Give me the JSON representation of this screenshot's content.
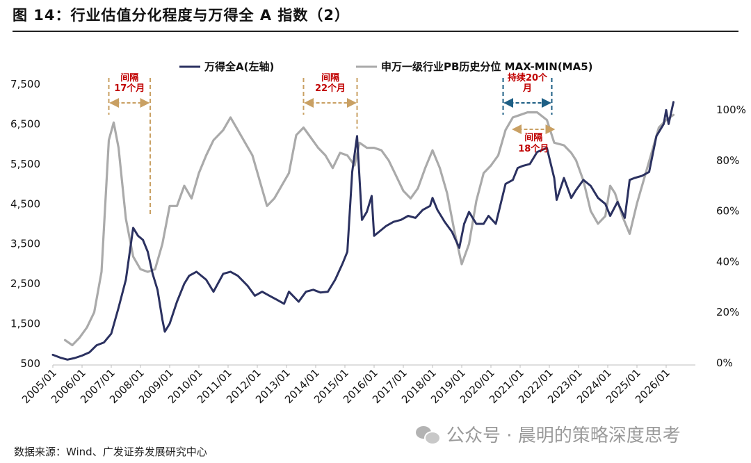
{
  "title": "图 14：行业估值分化程度与万得全 A 指数（2）",
  "source": "数据来源：Wind、广发证券发展研究中心",
  "watermark": "公众号 · 晨明的策略深度思考",
  "colors": {
    "wind": "#2b3160",
    "pb": "#aaaaaa",
    "bracket_tan": "#c9a063",
    "bracket_blue": "#1e5f85",
    "annotation": "#c00000"
  },
  "chart_data": {
    "type": "line",
    "x_ticks": [
      "2005/01",
      "2006/01",
      "2007/01",
      "2008/01",
      "2009/01",
      "2010/01",
      "2011/01",
      "2012/01",
      "2013/01",
      "2014/01",
      "2015/01",
      "2016/01",
      "2017/01",
      "2018/01",
      "2019/01",
      "2020/01",
      "2021/01",
      "2022/01",
      "2023/01",
      "2024/01",
      "2025/01",
      "2026/01"
    ],
    "y_left_ticks": [
      "500",
      "1,500",
      "2,500",
      "3,500",
      "4,500",
      "5,500",
      "6,500",
      "7,500"
    ],
    "y_right_ticks": [
      "0%",
      "20%",
      "40%",
      "60%",
      "80%",
      "100%"
    ],
    "ylim_left": [
      500,
      7500
    ],
    "ylim_right": [
      0,
      100
    ],
    "grid": false,
    "legend_position": "top",
    "series": [
      {
        "name": "万得全A(左轴)",
        "axis": "left",
        "color": "#2b3160",
        "points": [
          [
            "2005-01",
            720
          ],
          [
            "2005-04",
            650
          ],
          [
            "2005-07",
            600
          ],
          [
            "2005-10",
            640
          ],
          [
            "2006-01",
            700
          ],
          [
            "2006-04",
            780
          ],
          [
            "2006-07",
            960
          ],
          [
            "2006-10",
            1030
          ],
          [
            "2007-01",
            1250
          ],
          [
            "2007-04",
            1900
          ],
          [
            "2007-07",
            2600
          ],
          [
            "2007-10",
            3900
          ],
          [
            "2007-12",
            3700
          ],
          [
            "2008-02",
            3600
          ],
          [
            "2008-04",
            3300
          ],
          [
            "2008-06",
            2750
          ],
          [
            "2008-08",
            2350
          ],
          [
            "2008-10",
            1600
          ],
          [
            "2008-11",
            1300
          ],
          [
            "2009-01",
            1500
          ],
          [
            "2009-04",
            2050
          ],
          [
            "2009-07",
            2500
          ],
          [
            "2009-09",
            2700
          ],
          [
            "2009-12",
            2800
          ],
          [
            "2010-04",
            2600
          ],
          [
            "2010-07",
            2300
          ],
          [
            "2010-11",
            2750
          ],
          [
            "2011-02",
            2800
          ],
          [
            "2011-05",
            2700
          ],
          [
            "2011-09",
            2450
          ],
          [
            "2011-12",
            2200
          ],
          [
            "2012-03",
            2300
          ],
          [
            "2012-06",
            2200
          ],
          [
            "2012-09",
            2100
          ],
          [
            "2012-12",
            2000
          ],
          [
            "2013-02",
            2300
          ],
          [
            "2013-06",
            2050
          ],
          [
            "2013-09",
            2300
          ],
          [
            "2013-12",
            2350
          ],
          [
            "2014-03",
            2280
          ],
          [
            "2014-06",
            2300
          ],
          [
            "2014-09",
            2600
          ],
          [
            "2014-12",
            3000
          ],
          [
            "2015-02",
            3300
          ],
          [
            "2015-04",
            5300
          ],
          [
            "2015-06",
            6200
          ],
          [
            "2015-08",
            4100
          ],
          [
            "2015-10",
            4300
          ],
          [
            "2015-12",
            4700
          ],
          [
            "2016-01",
            3700
          ],
          [
            "2016-03",
            3800
          ],
          [
            "2016-06",
            3950
          ],
          [
            "2016-09",
            4050
          ],
          [
            "2016-12",
            4100
          ],
          [
            "2017-03",
            4200
          ],
          [
            "2017-06",
            4150
          ],
          [
            "2017-09",
            4350
          ],
          [
            "2017-12",
            4450
          ],
          [
            "2018-01",
            4650
          ],
          [
            "2018-03",
            4350
          ],
          [
            "2018-06",
            4050
          ],
          [
            "2018-09",
            3800
          ],
          [
            "2018-12",
            3400
          ],
          [
            "2019-02",
            4000
          ],
          [
            "2019-04",
            4300
          ],
          [
            "2019-07",
            4000
          ],
          [
            "2019-10",
            4000
          ],
          [
            "2019-12",
            4200
          ],
          [
            "2020-03",
            4000
          ],
          [
            "2020-07",
            5000
          ],
          [
            "2020-10",
            5100
          ],
          [
            "2020-12",
            5400
          ],
          [
            "2021-02",
            5450
          ],
          [
            "2021-05",
            5500
          ],
          [
            "2021-08",
            5800
          ],
          [
            "2021-12",
            5900
          ],
          [
            "2022-03",
            5150
          ],
          [
            "2022-04",
            4600
          ],
          [
            "2022-07",
            5150
          ],
          [
            "2022-10",
            4650
          ],
          [
            "2022-12",
            4850
          ],
          [
            "2023-03",
            5100
          ],
          [
            "2023-06",
            4950
          ],
          [
            "2023-09",
            4650
          ],
          [
            "2023-12",
            4500
          ],
          [
            "2024-02",
            4200
          ],
          [
            "2024-05",
            4550
          ],
          [
            "2024-08",
            4150
          ],
          [
            "2024-10",
            5100
          ],
          [
            "2024-12",
            5150
          ],
          [
            "2025-03",
            5200
          ],
          [
            "2025-06",
            5300
          ],
          [
            "2025-09",
            6200
          ],
          [
            "2025-12",
            6500
          ],
          [
            "2026-01",
            6850
          ],
          [
            "2026-02",
            6500
          ],
          [
            "2026-04",
            7050
          ]
        ]
      },
      {
        "name": "申万一级行业PB历史分位 MAX-MIN(MA5)",
        "axis": "right",
        "color": "#aaaaaa",
        "points": [
          [
            "2005-06",
            9
          ],
          [
            "2005-09",
            7
          ],
          [
            "2005-12",
            10
          ],
          [
            "2006-03",
            14
          ],
          [
            "2006-06",
            20
          ],
          [
            "2006-09",
            36
          ],
          [
            "2006-12",
            88
          ],
          [
            "2007-02",
            95
          ],
          [
            "2007-04",
            85
          ],
          [
            "2007-07",
            57
          ],
          [
            "2007-10",
            42
          ],
          [
            "2008-01",
            37
          ],
          [
            "2008-04",
            36
          ],
          [
            "2008-07",
            37
          ],
          [
            "2008-10",
            47
          ],
          [
            "2009-01",
            62
          ],
          [
            "2009-04",
            62
          ],
          [
            "2009-07",
            70
          ],
          [
            "2009-10",
            65
          ],
          [
            "2010-01",
            75
          ],
          [
            "2010-04",
            82
          ],
          [
            "2010-07",
            88
          ],
          [
            "2010-11",
            92
          ],
          [
            "2011-02",
            97
          ],
          [
            "2011-05",
            92
          ],
          [
            "2011-08",
            87
          ],
          [
            "2011-11",
            82
          ],
          [
            "2012-02",
            72
          ],
          [
            "2012-05",
            62
          ],
          [
            "2012-08",
            65
          ],
          [
            "2012-11",
            70
          ],
          [
            "2013-02",
            75
          ],
          [
            "2013-05",
            90
          ],
          [
            "2013-08",
            93
          ],
          [
            "2013-11",
            89
          ],
          [
            "2014-02",
            85
          ],
          [
            "2014-05",
            82
          ],
          [
            "2014-08",
            77
          ],
          [
            "2014-11",
            83
          ],
          [
            "2015-02",
            82
          ],
          [
            "2015-05",
            78
          ],
          [
            "2015-07",
            87
          ],
          [
            "2015-10",
            85
          ],
          [
            "2016-01",
            85
          ],
          [
            "2016-04",
            84
          ],
          [
            "2016-07",
            80
          ],
          [
            "2016-10",
            74
          ],
          [
            "2017-01",
            68
          ],
          [
            "2017-04",
            65
          ],
          [
            "2017-07",
            69
          ],
          [
            "2017-10",
            77
          ],
          [
            "2018-01",
            84
          ],
          [
            "2018-04",
            77
          ],
          [
            "2018-07",
            67
          ],
          [
            "2018-10",
            52
          ],
          [
            "2019-01",
            39
          ],
          [
            "2019-04",
            47
          ],
          [
            "2019-07",
            64
          ],
          [
            "2019-10",
            75
          ],
          [
            "2020-01",
            78
          ],
          [
            "2020-04",
            82
          ],
          [
            "2020-07",
            92
          ],
          [
            "2020-10",
            97
          ],
          [
            "2021-01",
            98
          ],
          [
            "2021-04",
            99
          ],
          [
            "2021-08",
            99
          ],
          [
            "2021-12",
            96
          ],
          [
            "2022-03",
            87
          ],
          [
            "2022-07",
            86
          ],
          [
            "2022-10",
            83
          ],
          [
            "2022-12",
            80
          ],
          [
            "2023-03",
            72
          ],
          [
            "2023-06",
            60
          ],
          [
            "2023-09",
            55
          ],
          [
            "2023-12",
            58
          ],
          [
            "2024-02",
            70
          ],
          [
            "2024-04",
            67
          ],
          [
            "2024-07",
            58
          ],
          [
            "2024-10",
            51
          ],
          [
            "2025-01",
            63
          ],
          [
            "2025-04",
            73
          ],
          [
            "2025-07",
            83
          ],
          [
            "2025-10",
            93
          ],
          [
            "2026-01",
            96
          ],
          [
            "2026-04",
            98
          ]
        ]
      }
    ],
    "annotations": [
      {
        "lines": [
          "间隔",
          "17个月"
        ],
        "from": "2006-12",
        "to": "2008-05",
        "style": "tan"
      },
      {
        "lines": [
          "间隔",
          "22个月"
        ],
        "from": "2013-08",
        "to": "2015-06",
        "style": "tan"
      },
      {
        "lines": [
          "持续20个",
          "月"
        ],
        "from": "2020-06",
        "to": "2022-02",
        "style": "blue"
      },
      {
        "lines": [
          "间隔",
          "18个月"
        ],
        "from": "2020-10",
        "to": "2022-03",
        "style": "tan-inner"
      }
    ]
  }
}
